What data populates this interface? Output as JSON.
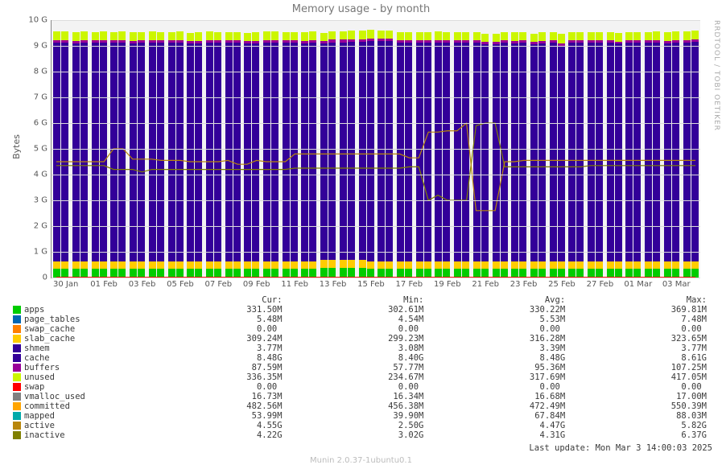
{
  "title": "Memory usage - by month",
  "ylabel": "Bytes",
  "sidetext": "RRDTOOL / TOBI OETIKER",
  "footer": "Last update: Mon Mar  3 14:00:03 2025",
  "munin_version": "Munin 2.0.37-1ubuntu0.1",
  "background_color": "#f3f3f3",
  "grid_color": "#dcdcdc",
  "axis_color": "#888888",
  "text_color": "#555555",
  "yaxis": {
    "min": 0,
    "max": 10,
    "ticks": [
      0,
      1,
      2,
      3,
      4,
      5,
      6,
      7,
      8,
      9,
      10
    ],
    "ticklabels": [
      "0",
      "1 G",
      "2 G",
      "3 G",
      "4 G",
      "5 G",
      "6 G",
      "7 G",
      "8 G",
      "9 G",
      "10 G"
    ]
  },
  "xaxis": {
    "labels": [
      "30 Jan",
      "01 Feb",
      "03 Feb",
      "05 Feb",
      "07 Feb",
      "09 Feb",
      "11 Feb",
      "13 Feb",
      "15 Feb",
      "17 Feb",
      "19 Feb",
      "21 Feb",
      "23 Feb",
      "25 Feb",
      "27 Feb",
      "01 Mar",
      "03 Mar"
    ]
  },
  "stack_colors": {
    "apps": "#00cc00",
    "page_tables": "#0066b3",
    "swap_cache": "#ff8000",
    "slab_cache": "#ffcc00",
    "shmem": "#330099",
    "cache": "#330099",
    "buffers": "#990099",
    "unused": "#ccf600"
  },
  "line_colors": {
    "swap": "#ff0000",
    "vmalloc_used": "#808080",
    "committed": "#ffa500",
    "mapped": "#00aaaa",
    "active": "#b8860b",
    "inactive": "#808000"
  },
  "bars": [
    {
      "apps": 0.33,
      "slab": 0.31,
      "cache": 8.48,
      "buffers": 0.09,
      "unused": 0.34
    },
    {
      "apps": 0.33,
      "slab": 0.31,
      "cache": 8.48,
      "buffers": 0.09,
      "unused": 0.34
    },
    {
      "apps": 0.33,
      "slab": 0.31,
      "cache": 8.45,
      "buffers": 0.09,
      "unused": 0.34
    },
    {
      "apps": 0.33,
      "slab": 0.31,
      "cache": 8.5,
      "buffers": 0.09,
      "unused": 0.33
    },
    {
      "apps": 0.33,
      "slab": 0.31,
      "cache": 8.48,
      "buffers": 0.09,
      "unused": 0.33
    },
    {
      "apps": 0.33,
      "slab": 0.31,
      "cache": 8.5,
      "buffers": 0.09,
      "unused": 0.34
    },
    {
      "apps": 0.33,
      "slab": 0.31,
      "cache": 8.48,
      "buffers": 0.09,
      "unused": 0.33
    },
    {
      "apps": 0.33,
      "slab": 0.31,
      "cache": 8.5,
      "buffers": 0.09,
      "unused": 0.34
    },
    {
      "apps": 0.33,
      "slab": 0.31,
      "cache": 8.46,
      "buffers": 0.09,
      "unused": 0.33
    },
    {
      "apps": 0.33,
      "slab": 0.31,
      "cache": 8.48,
      "buffers": 0.09,
      "unused": 0.33
    },
    {
      "apps": 0.33,
      "slab": 0.31,
      "cache": 8.5,
      "buffers": 0.09,
      "unused": 0.34
    },
    {
      "apps": 0.33,
      "slab": 0.31,
      "cache": 8.48,
      "buffers": 0.09,
      "unused": 0.33
    },
    {
      "apps": 0.33,
      "slab": 0.31,
      "cache": 8.48,
      "buffers": 0.09,
      "unused": 0.33
    },
    {
      "apps": 0.33,
      "slab": 0.31,
      "cache": 8.5,
      "buffers": 0.09,
      "unused": 0.33
    },
    {
      "apps": 0.33,
      "slab": 0.31,
      "cache": 8.45,
      "buffers": 0.09,
      "unused": 0.33
    },
    {
      "apps": 0.33,
      "slab": 0.31,
      "cache": 8.46,
      "buffers": 0.09,
      "unused": 0.33
    },
    {
      "apps": 0.33,
      "slab": 0.31,
      "cache": 8.5,
      "buffers": 0.09,
      "unused": 0.33
    },
    {
      "apps": 0.33,
      "slab": 0.31,
      "cache": 8.48,
      "buffers": 0.09,
      "unused": 0.33
    },
    {
      "apps": 0.33,
      "slab": 0.31,
      "cache": 8.48,
      "buffers": 0.09,
      "unused": 0.33
    },
    {
      "apps": 0.33,
      "slab": 0.31,
      "cache": 8.48,
      "buffers": 0.09,
      "unused": 0.33
    },
    {
      "apps": 0.33,
      "slab": 0.31,
      "cache": 8.45,
      "buffers": 0.09,
      "unused": 0.33
    },
    {
      "apps": 0.33,
      "slab": 0.31,
      "cache": 8.46,
      "buffers": 0.09,
      "unused": 0.33
    },
    {
      "apps": 0.33,
      "slab": 0.31,
      "cache": 8.5,
      "buffers": 0.09,
      "unused": 0.33
    },
    {
      "apps": 0.33,
      "slab": 0.31,
      "cache": 8.5,
      "buffers": 0.09,
      "unused": 0.33
    },
    {
      "apps": 0.33,
      "slab": 0.31,
      "cache": 8.48,
      "buffers": 0.09,
      "unused": 0.33
    },
    {
      "apps": 0.33,
      "slab": 0.31,
      "cache": 8.48,
      "buffers": 0.09,
      "unused": 0.33
    },
    {
      "apps": 0.33,
      "slab": 0.31,
      "cache": 8.46,
      "buffers": 0.09,
      "unused": 0.33
    },
    {
      "apps": 0.33,
      "slab": 0.31,
      "cache": 8.48,
      "buffers": 0.1,
      "unused": 0.33
    },
    {
      "apps": 0.36,
      "slab": 0.32,
      "cache": 8.4,
      "buffers": 0.1,
      "unused": 0.33
    },
    {
      "apps": 0.36,
      "slab": 0.32,
      "cache": 8.46,
      "buffers": 0.1,
      "unused": 0.33
    },
    {
      "apps": 0.36,
      "slab": 0.32,
      "cache": 8.46,
      "buffers": 0.1,
      "unused": 0.33
    },
    {
      "apps": 0.36,
      "slab": 0.32,
      "cache": 8.48,
      "buffers": 0.1,
      "unused": 0.33
    },
    {
      "apps": 0.36,
      "slab": 0.32,
      "cache": 8.48,
      "buffers": 0.1,
      "unused": 0.33
    },
    {
      "apps": 0.33,
      "slab": 0.31,
      "cache": 8.55,
      "buffers": 0.1,
      "unused": 0.33
    },
    {
      "apps": 0.33,
      "slab": 0.31,
      "cache": 8.55,
      "buffers": 0.09,
      "unused": 0.3
    },
    {
      "apps": 0.33,
      "slab": 0.31,
      "cache": 8.55,
      "buffers": 0.09,
      "unused": 0.33
    },
    {
      "apps": 0.33,
      "slab": 0.31,
      "cache": 8.48,
      "buffers": 0.09,
      "unused": 0.33
    },
    {
      "apps": 0.33,
      "slab": 0.31,
      "cache": 8.48,
      "buffers": 0.09,
      "unused": 0.33
    },
    {
      "apps": 0.33,
      "slab": 0.31,
      "cache": 8.48,
      "buffers": 0.09,
      "unused": 0.33
    },
    {
      "apps": 0.33,
      "slab": 0.31,
      "cache": 8.48,
      "buffers": 0.1,
      "unused": 0.3
    },
    {
      "apps": 0.33,
      "slab": 0.31,
      "cache": 8.48,
      "buffers": 0.1,
      "unused": 0.33
    },
    {
      "apps": 0.33,
      "slab": 0.31,
      "cache": 8.48,
      "buffers": 0.09,
      "unused": 0.33
    },
    {
      "apps": 0.33,
      "slab": 0.31,
      "cache": 8.48,
      "buffers": 0.09,
      "unused": 0.33
    },
    {
      "apps": 0.33,
      "slab": 0.31,
      "cache": 8.48,
      "buffers": 0.09,
      "unused": 0.33
    },
    {
      "apps": 0.33,
      "slab": 0.31,
      "cache": 8.48,
      "buffers": 0.09,
      "unused": 0.33
    },
    {
      "apps": 0.33,
      "slab": 0.31,
      "cache": 8.42,
      "buffers": 0.09,
      "unused": 0.33
    },
    {
      "apps": 0.33,
      "slab": 0.31,
      "cache": 8.42,
      "buffers": 0.09,
      "unused": 0.33
    },
    {
      "apps": 0.33,
      "slab": 0.31,
      "cache": 8.5,
      "buffers": 0.09,
      "unused": 0.3
    },
    {
      "apps": 0.33,
      "slab": 0.31,
      "cache": 8.46,
      "buffers": 0.09,
      "unused": 0.33
    },
    {
      "apps": 0.33,
      "slab": 0.31,
      "cache": 8.48,
      "buffers": 0.09,
      "unused": 0.33
    },
    {
      "apps": 0.33,
      "slab": 0.31,
      "cache": 8.42,
      "buffers": 0.09,
      "unused": 0.33
    },
    {
      "apps": 0.33,
      "slab": 0.31,
      "cache": 8.46,
      "buffers": 0.09,
      "unused": 0.33
    },
    {
      "apps": 0.33,
      "slab": 0.31,
      "cache": 8.48,
      "buffers": 0.09,
      "unused": 0.33
    },
    {
      "apps": 0.33,
      "slab": 0.31,
      "cache": 8.35,
      "buffers": 0.09,
      "unused": 0.4
    },
    {
      "apps": 0.33,
      "slab": 0.31,
      "cache": 8.48,
      "buffers": 0.09,
      "unused": 0.33
    },
    {
      "apps": 0.33,
      "slab": 0.31,
      "cache": 8.48,
      "buffers": 0.09,
      "unused": 0.33
    },
    {
      "apps": 0.33,
      "slab": 0.31,
      "cache": 8.48,
      "buffers": 0.09,
      "unused": 0.33
    },
    {
      "apps": 0.33,
      "slab": 0.31,
      "cache": 8.48,
      "buffers": 0.09,
      "unused": 0.33
    },
    {
      "apps": 0.33,
      "slab": 0.31,
      "cache": 8.48,
      "buffers": 0.09,
      "unused": 0.33
    },
    {
      "apps": 0.33,
      "slab": 0.31,
      "cache": 8.44,
      "buffers": 0.09,
      "unused": 0.33
    },
    {
      "apps": 0.33,
      "slab": 0.31,
      "cache": 8.48,
      "buffers": 0.09,
      "unused": 0.33
    },
    {
      "apps": 0.33,
      "slab": 0.31,
      "cache": 8.48,
      "buffers": 0.09,
      "unused": 0.33
    },
    {
      "apps": 0.33,
      "slab": 0.31,
      "cache": 8.48,
      "buffers": 0.09,
      "unused": 0.33
    },
    {
      "apps": 0.33,
      "slab": 0.31,
      "cache": 8.5,
      "buffers": 0.09,
      "unused": 0.33
    },
    {
      "apps": 0.33,
      "slab": 0.31,
      "cache": 8.46,
      "buffers": 0.09,
      "unused": 0.33
    },
    {
      "apps": 0.33,
      "slab": 0.31,
      "cache": 8.5,
      "buffers": 0.09,
      "unused": 0.33
    },
    {
      "apps": 0.33,
      "slab": 0.31,
      "cache": 8.5,
      "buffers": 0.09,
      "unused": 0.33
    },
    {
      "apps": 0.33,
      "slab": 0.31,
      "cache": 8.52,
      "buffers": 0.09,
      "unused": 0.35
    }
  ],
  "lines": {
    "inactive": [
      4.35,
      4.35,
      4.35,
      4.35,
      4.35,
      4.35,
      4.2,
      4.2,
      4.2,
      4.1,
      4.2,
      4.2,
      4.2,
      4.2,
      4.2,
      4.2,
      4.2,
      4.2,
      4.2,
      4.2,
      4.2,
      4.2,
      4.2,
      4.2,
      4.2,
      4.25,
      4.25,
      4.25,
      4.25,
      4.25,
      4.25,
      4.25,
      4.25,
      4.25,
      4.25,
      4.25,
      4.25,
      4.3,
      4.3,
      3.0,
      3.2,
      3.0,
      3.0,
      3.0,
      5.9,
      6.0,
      6.0,
      4.3,
      4.3,
      4.3,
      4.3,
      4.3,
      4.3,
      4.3,
      4.3,
      4.3,
      4.35,
      4.35,
      4.35,
      4.35,
      4.35,
      4.35,
      4.35,
      4.35,
      4.35,
      4.35,
      4.35,
      4.35
    ],
    "active": [
      4.5,
      4.5,
      4.5,
      4.5,
      4.5,
      4.5,
      5.0,
      5.0,
      4.6,
      4.6,
      4.6,
      4.55,
      4.55,
      4.55,
      4.5,
      4.5,
      4.5,
      4.5,
      4.55,
      4.4,
      4.4,
      4.55,
      4.5,
      4.5,
      4.5,
      4.8,
      4.8,
      4.8,
      4.8,
      4.8,
      4.8,
      4.8,
      4.8,
      4.8,
      4.8,
      4.8,
      4.8,
      4.65,
      4.65,
      5.65,
      5.65,
      5.7,
      5.7,
      6.0,
      2.6,
      2.6,
      2.6,
      4.5,
      4.5,
      4.55,
      4.55,
      4.55,
      4.55,
      4.55,
      4.55,
      4.55,
      4.55,
      4.55,
      4.55,
      4.55,
      4.55,
      4.55,
      4.55,
      4.55,
      4.55,
      4.55,
      4.55,
      4.55
    ]
  },
  "legend": {
    "columns": [
      "",
      "Cur:",
      "Min:",
      "Avg:",
      "Max:"
    ],
    "rows": [
      {
        "color": "#00cc00",
        "name": "apps",
        "cur": "331.50M",
        "min": "302.61M",
        "avg": "330.22M",
        "max": "369.81M"
      },
      {
        "color": "#0066b3",
        "name": "page_tables",
        "cur": "5.48M",
        "min": "4.54M",
        "avg": "5.53M",
        "max": "7.48M"
      },
      {
        "color": "#ff8000",
        "name": "swap_cache",
        "cur": "0.00 ",
        "min": "0.00 ",
        "avg": "0.00 ",
        "max": "0.00 "
      },
      {
        "color": "#ffcc00",
        "name": "slab_cache",
        "cur": "309.24M",
        "min": "299.23M",
        "avg": "316.28M",
        "max": "323.65M"
      },
      {
        "color": "#330099",
        "name": "shmem",
        "cur": "3.77M",
        "min": "3.08M",
        "avg": "3.39M",
        "max": "3.77M"
      },
      {
        "color": "#330099",
        "name": "cache",
        "cur": "8.48G",
        "min": "8.40G",
        "avg": "8.48G",
        "max": "8.61G"
      },
      {
        "color": "#990099",
        "name": "buffers",
        "cur": "87.59M",
        "min": "57.77M",
        "avg": "95.36M",
        "max": "107.25M"
      },
      {
        "color": "#ccf600",
        "name": "unused",
        "cur": "336.35M",
        "min": "234.67M",
        "avg": "317.69M",
        "max": "417.05M"
      },
      {
        "color": "#ff0000",
        "name": "swap",
        "cur": "0.00 ",
        "min": "0.00 ",
        "avg": "0.00 ",
        "max": "0.00 "
      },
      {
        "color": "#808080",
        "name": "vmalloc_used",
        "cur": "16.73M",
        "min": "16.34M",
        "avg": "16.68M",
        "max": "17.00M"
      },
      {
        "color": "#ffa500",
        "name": "committed",
        "cur": "482.56M",
        "min": "456.38M",
        "avg": "472.49M",
        "max": "550.39M"
      },
      {
        "color": "#00aaaa",
        "name": "mapped",
        "cur": "53.99M",
        "min": "39.90M",
        "avg": "67.84M",
        "max": "88.03M"
      },
      {
        "color": "#b8860b",
        "name": "active",
        "cur": "4.55G",
        "min": "2.50G",
        "avg": "4.47G",
        "max": "5.82G"
      },
      {
        "color": "#808000",
        "name": "inactive",
        "cur": "4.22G",
        "min": "3.02G",
        "avg": "4.31G",
        "max": "6.37G"
      }
    ]
  }
}
